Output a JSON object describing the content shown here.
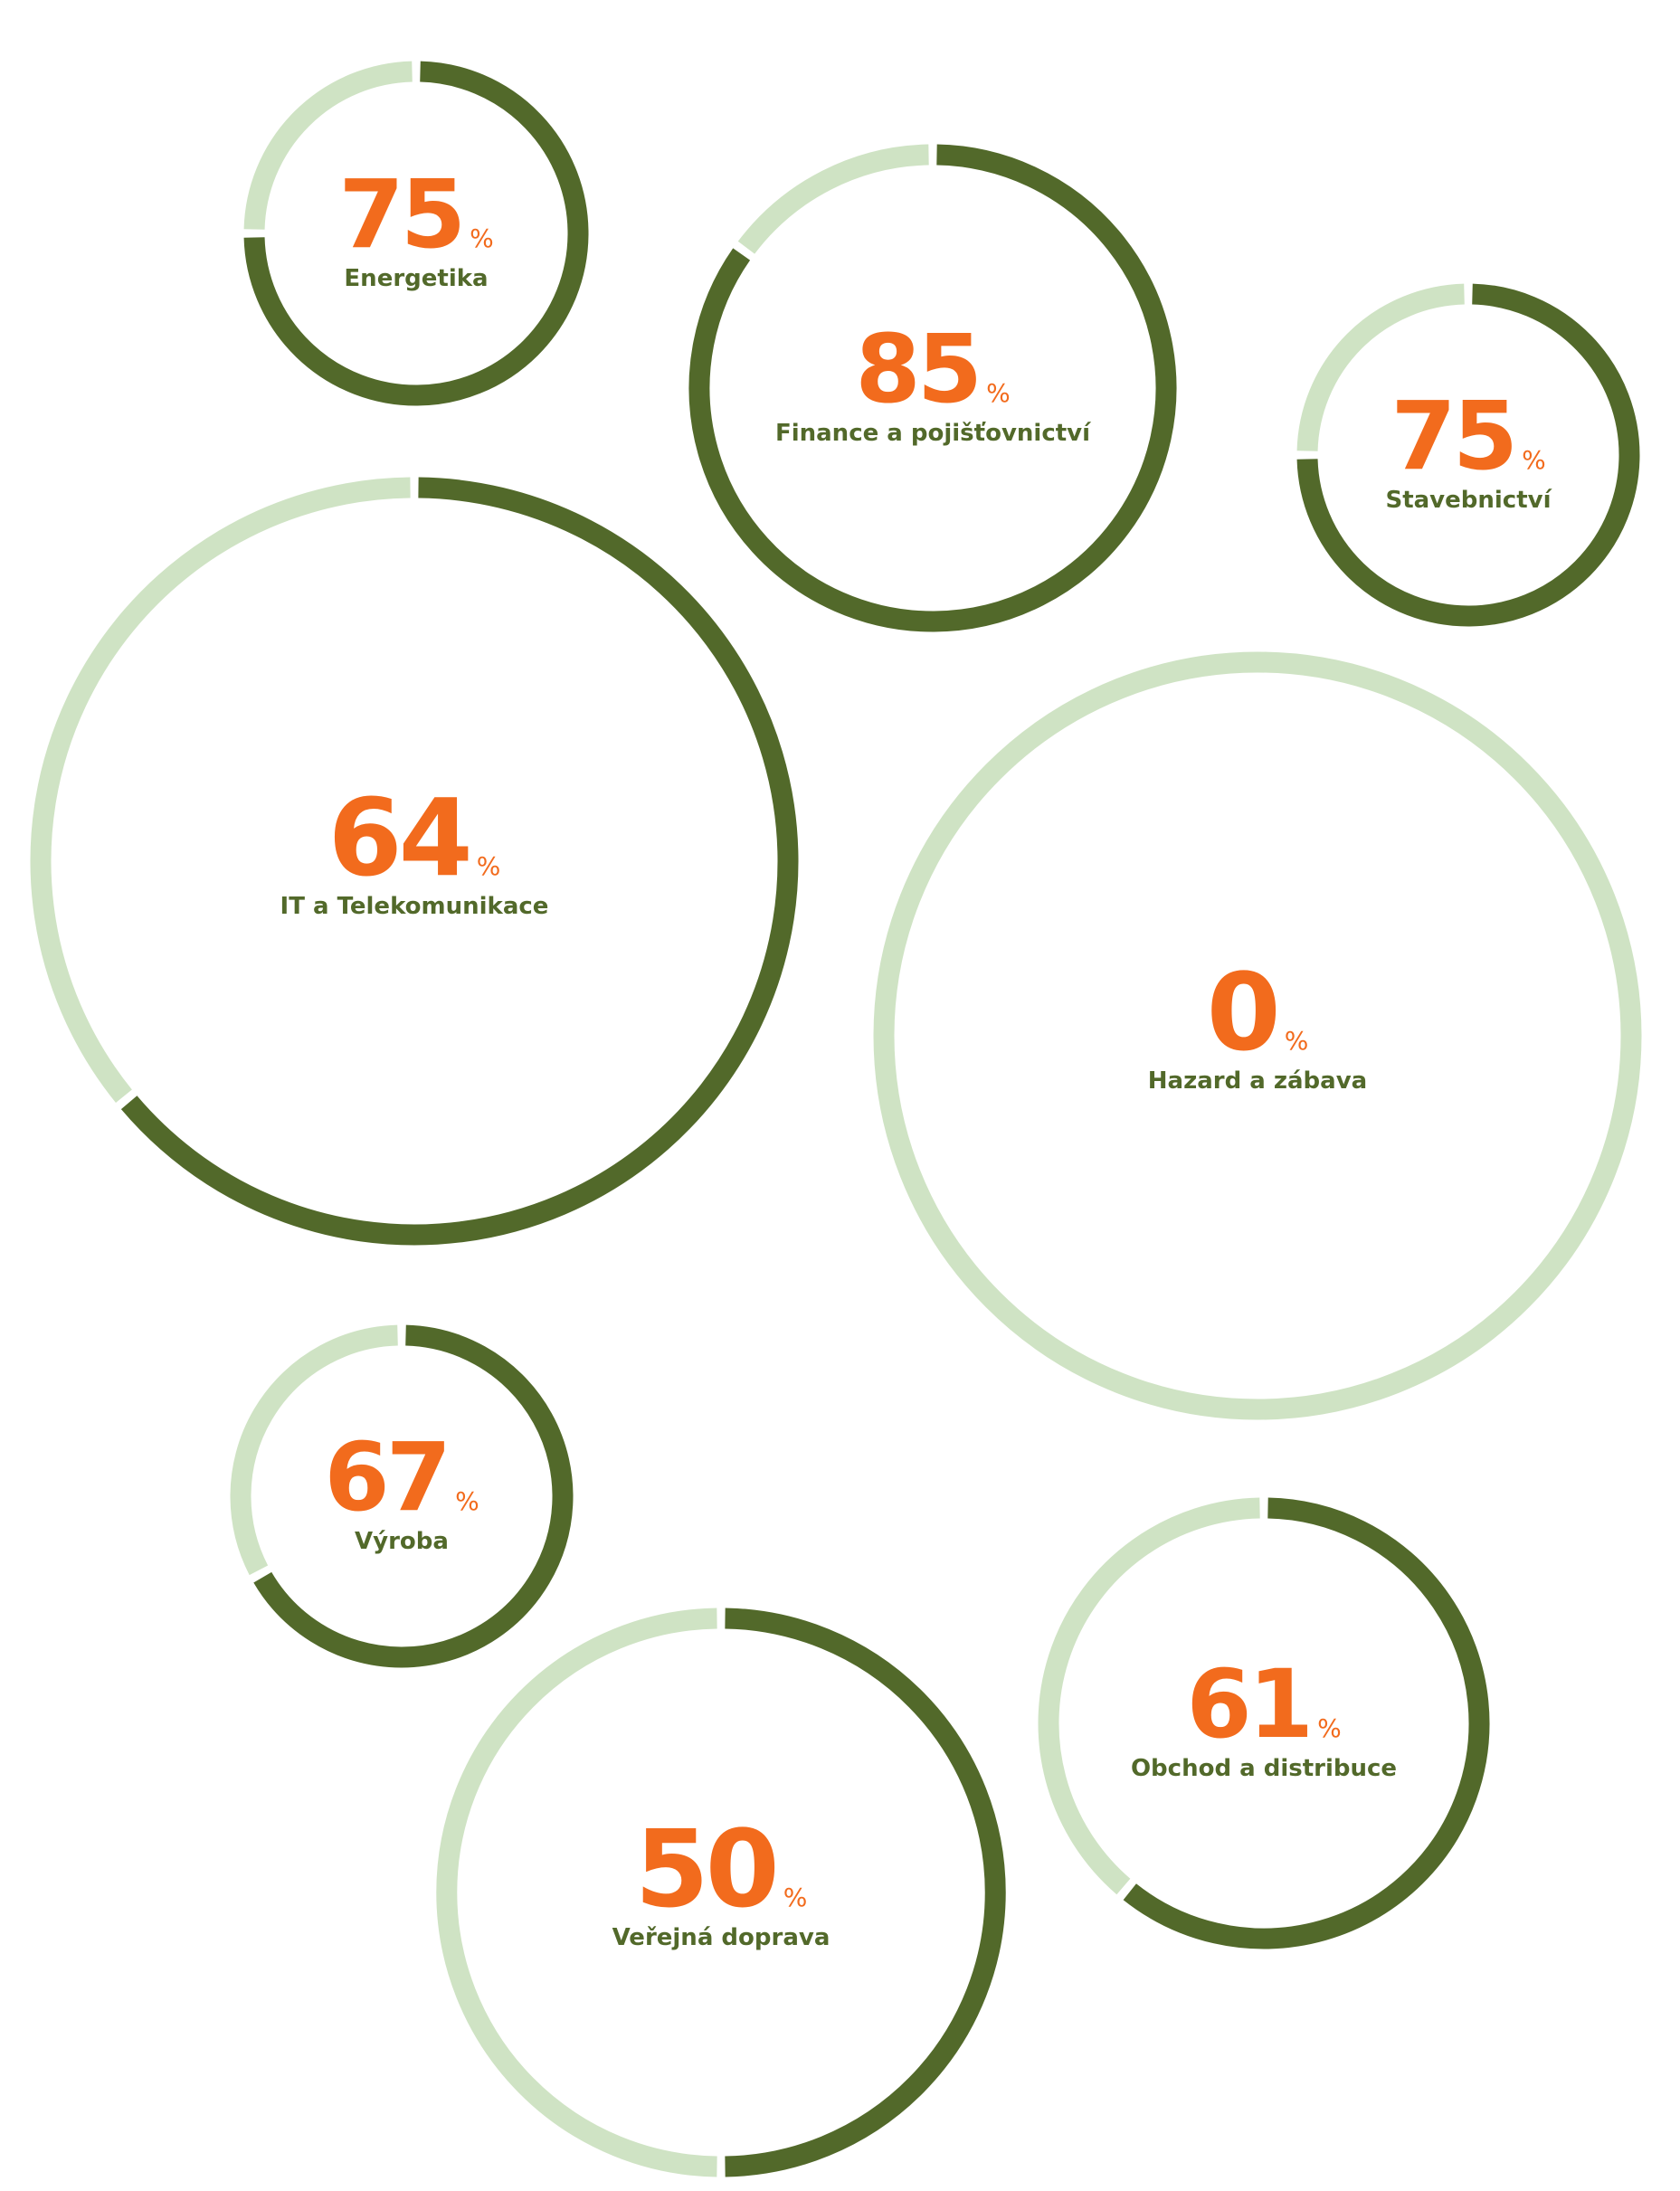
{
  "colors": {
    "filled": "#52692a",
    "remaining": "#cfe3c4",
    "value": "#f26b1d",
    "label": "#52692a"
  },
  "unit": "%",
  "chart_data": {
    "type": "donut",
    "items": [
      {
        "label": "Energetika",
        "value": 75
      },
      {
        "label": "Finance a pojišťovnictví",
        "value": 85
      },
      {
        "label": "Stavebnictví",
        "value": 75
      },
      {
        "label": "IT a Telekomunikace",
        "value": 64
      },
      {
        "label": "Hazard a zábava",
        "value": 0
      },
      {
        "label": "Výroba",
        "value": 67
      },
      {
        "label": "Veřejná doprava",
        "value": 50
      },
      {
        "label": "Obchod a distribuce",
        "value": 61
      }
    ]
  }
}
